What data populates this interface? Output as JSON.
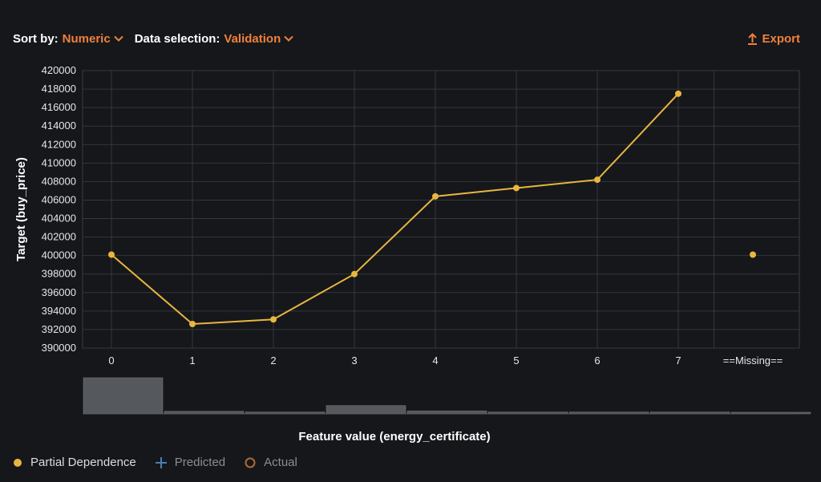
{
  "toolbar": {
    "sort_label": "Sort by:",
    "sort_value": "Numeric",
    "data_label": "Data selection:",
    "data_value": "Validation",
    "export_label": "Export"
  },
  "colors": {
    "accent": "#f0803c",
    "line": "#e8b63e",
    "predicted": "#4a7fb5",
    "actual": "#b06a34",
    "hist_bar": "#55585d"
  },
  "legend": {
    "partial_dependence": "Partial Dependence",
    "predicted": "Predicted",
    "actual": "Actual"
  },
  "chart_data": {
    "type": "line",
    "xlabel": "Feature value (energy_certificate)",
    "ylabel": "Target (buy_price)",
    "categories": [
      "0",
      "1",
      "2",
      "3",
      "4",
      "5",
      "6",
      "7",
      "==Missing=="
    ],
    "series": [
      {
        "name": "Partial Dependence",
        "values": [
          400100,
          392600,
          393100,
          398000,
          406400,
          407300,
          408200,
          417500,
          400100
        ]
      }
    ],
    "missing_category": "==Missing==",
    "ylim": [
      390000,
      420000
    ],
    "yticks": [
      390000,
      392000,
      394000,
      396000,
      398000,
      400000,
      402000,
      404000,
      406000,
      408000,
      410000,
      412000,
      414000,
      416000,
      418000,
      420000
    ],
    "grid": true,
    "histogram": {
      "categories": [
        "0",
        "1",
        "2",
        "3",
        "4",
        "5",
        "6",
        "7",
        "==Missing=="
      ],
      "values": [
        1.0,
        0.07,
        0.05,
        0.23,
        0.08,
        0.05,
        0.05,
        0.05,
        0.01
      ]
    },
    "legend_placement": "bottom-left"
  }
}
